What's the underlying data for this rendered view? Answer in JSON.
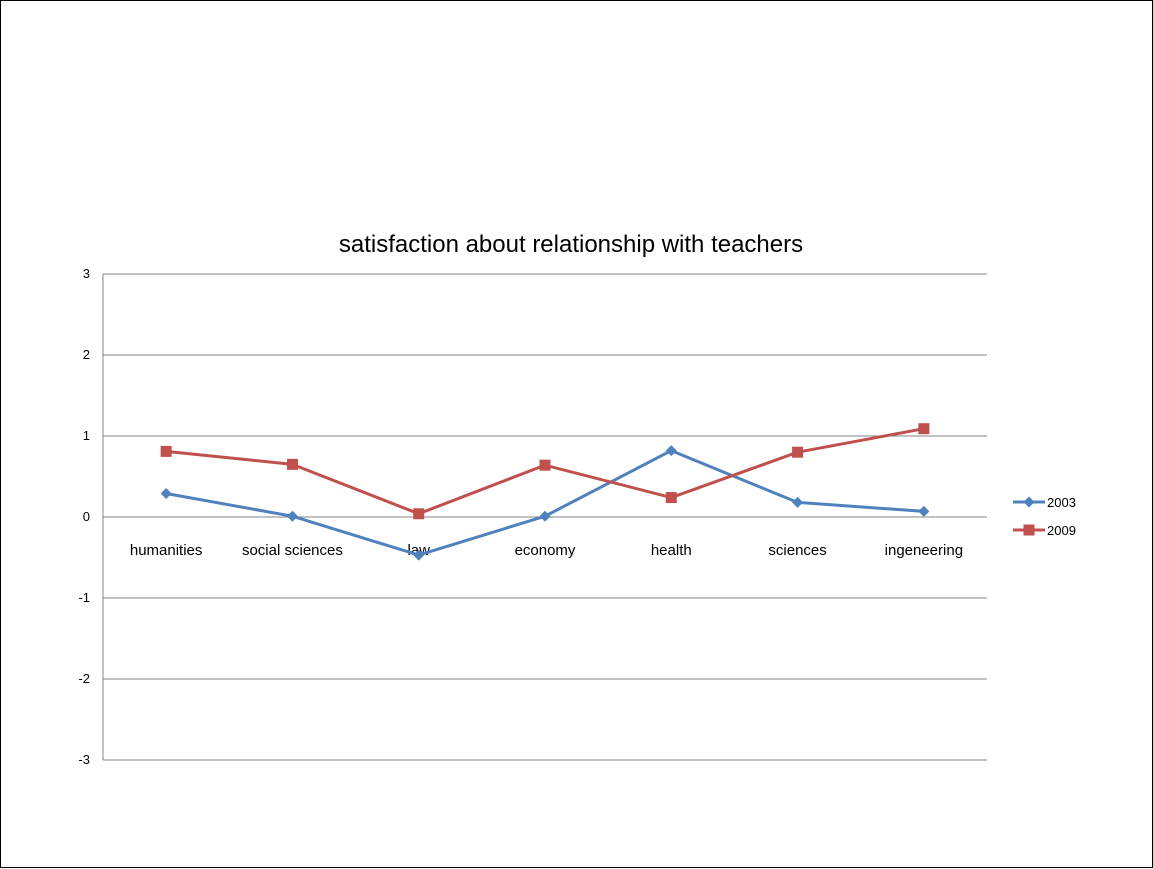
{
  "chart_data": {
    "type": "line",
    "title": "satisfaction about relationship with teachers",
    "xlabel": "",
    "ylabel": "",
    "categories": [
      "humanities",
      "social sciences",
      "law",
      "economy",
      "health",
      "sciences",
      "ingeneering"
    ],
    "ylim": [
      -3,
      3
    ],
    "yticks": [
      3,
      2,
      1,
      0,
      -1,
      -2,
      -3
    ],
    "grid": true,
    "legend_position": "right",
    "series": [
      {
        "name": "2003",
        "color": "#4f81bd",
        "marker": "diamond",
        "values": [
          0.29,
          0.01,
          -0.47,
          0.01,
          0.82,
          0.18,
          0.07
        ]
      },
      {
        "name": "2009",
        "color": "#c0504d",
        "marker": "square",
        "values": [
          0.81,
          0.65,
          0.04,
          0.64,
          0.24,
          0.8,
          1.09
        ]
      }
    ]
  }
}
